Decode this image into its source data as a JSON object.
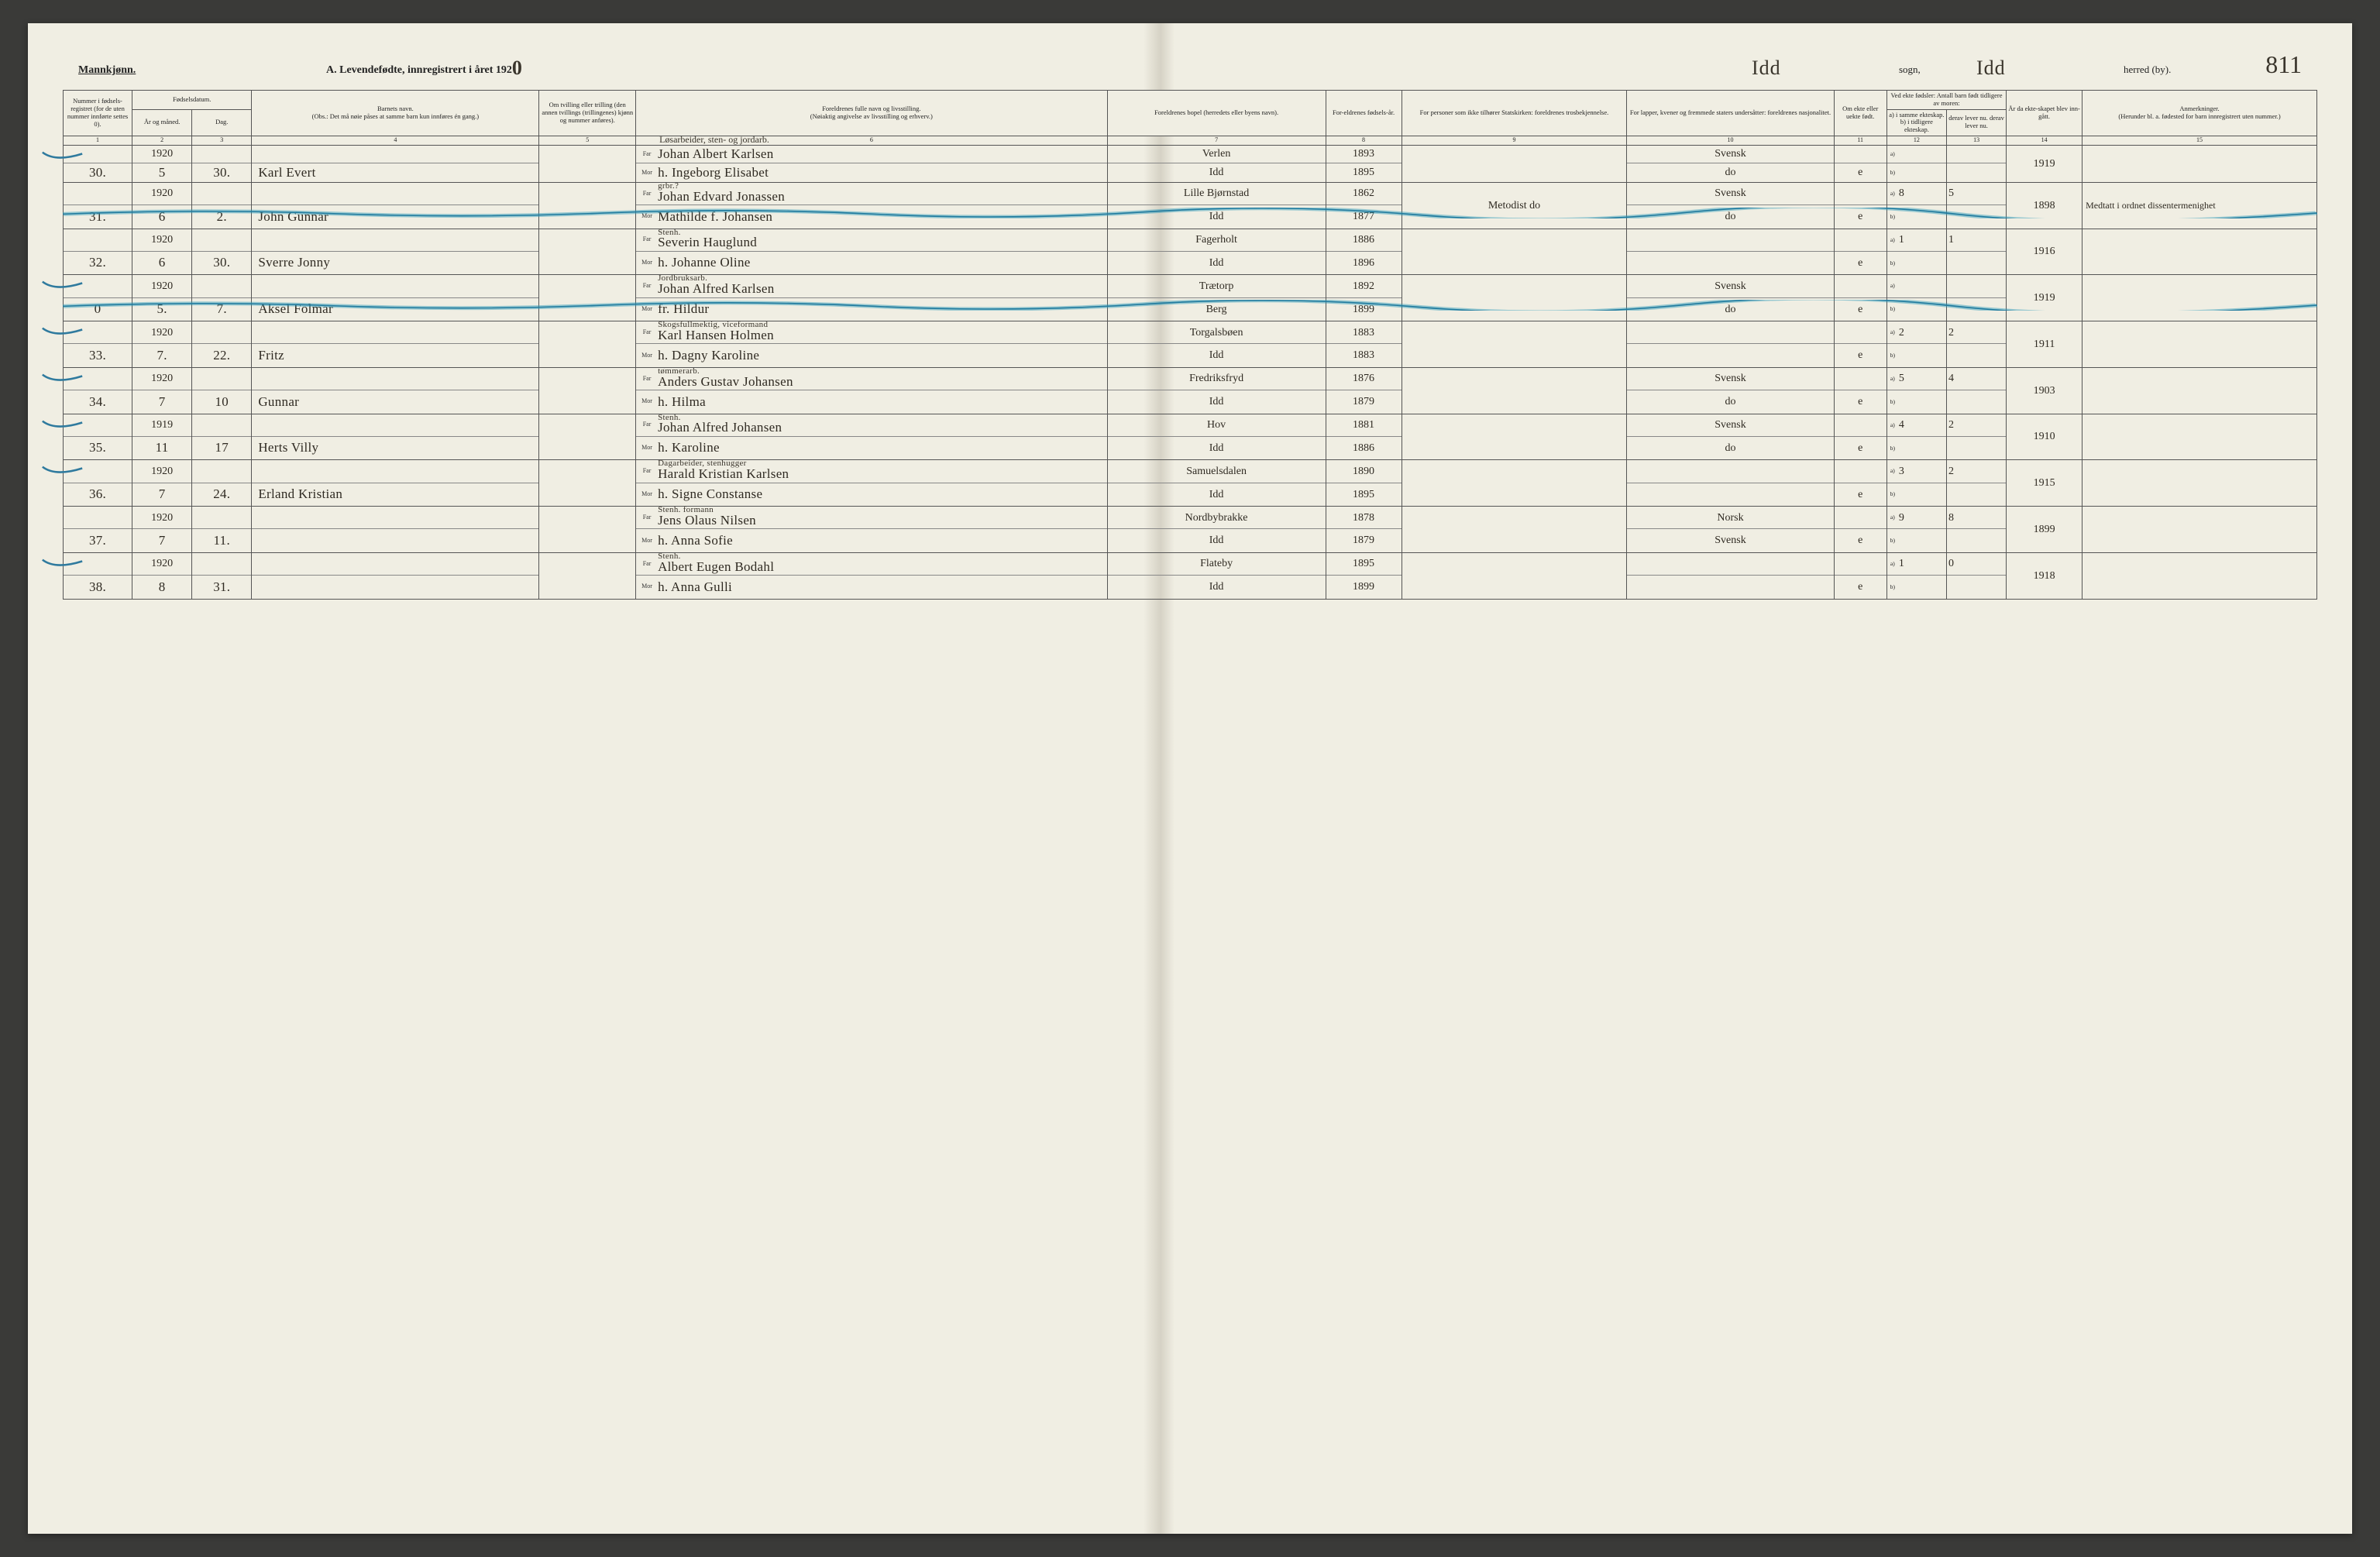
{
  "header": {
    "mannkjonn": "Mannkjønn.",
    "title_prefix": "A.  Levendefødte, innregistrert i året 192",
    "year_suffix": "0",
    "sogn_value": "Idd",
    "sogn_label": "sogn,",
    "herred_value": "Idd",
    "herred_label": "herred (by).",
    "page_number": "811"
  },
  "colors": {
    "paper": "#f0eee3",
    "ink": "#222222",
    "handwriting": "#2f2a22",
    "border": "#555555",
    "strike_blue": "#1f7a9e",
    "strike_highlight": "#2a9ab9",
    "tick_color": "#2f7a9e"
  },
  "columns": {
    "h1": "Nummer i fødsels-registret (for de uten nummer innførte settes 0).",
    "h2_group": "Fødselsdatum.",
    "h2a": "År og måned.",
    "h2b": "Dag.",
    "h4": "Barnets navn.",
    "h4_note": "(Obs.: Det må nøie påses at samme barn kun innføres én gang.)",
    "h5": "Om tvilling eller trilling (den annen tvillings (trillingenes) kjønn og nummer anføres).",
    "h6": "Foreldrenes fulle navn og livsstilling.",
    "h6_note": "(Nøiaktig angivelse av livsstilling og erhverv.)",
    "h7": "Foreldrenes bopel (herredets eller byens navn).",
    "h8": "For-eldrenes fødsels-år.",
    "h9": "For personer som ikke tilhører Statskirken: foreldrenes trosbekjennelse.",
    "h10": "For lapper, kvener og fremmede staters undersåtter: foreldrenes nasjonalitet.",
    "h11": "Om ekte eller uekte født.",
    "h12_group": "Ved ekte fødsler: Antall barn født tidligere av moren:",
    "h12a": "a) i samme ekteskap.  b) i tidligere ekteskap.",
    "h12b": "derav lever nu. derav lever nu.",
    "h14": "År da ekte-skapet blev inn-gått.",
    "h15": "Anmerkninger.",
    "h15_note": "(Herunder bl. a. fødested for barn innregistrert uten nummer.)",
    "tag_far": "Far",
    "tag_mor": "Mor",
    "tag_a": "a)",
    "tag_b": "b)"
  },
  "colnums": [
    "1",
    "2",
    "3",
    "4",
    "5",
    "6",
    "7",
    "8",
    "9",
    "10",
    "11",
    "12",
    "13",
    "14",
    "15"
  ],
  "rows": [
    {
      "num": "30.",
      "year": "1920",
      "mon": "5",
      "day": "30.",
      "name": "Karl Evert",
      "occupation": "Løsarbeider, sten- og jordarb.",
      "far": "Johan Albert Karlsen",
      "mor": "h. Ingeborg Elisabet",
      "bopel_f": "Verlen",
      "bopel_m": "Idd",
      "yr_f": "1893",
      "yr_m": "1895",
      "tro": "",
      "nat_f": "Svensk",
      "nat_m": "do",
      "ekte": "e",
      "a": "",
      "b": "",
      "lev_a": "",
      "lev_b": "",
      "married": "1919",
      "remark": "",
      "tick": true
    },
    {
      "num": "31.",
      "year": "1920",
      "mon": "6",
      "day": "2.",
      "name": "John Gunnar",
      "occupation": "grbr.?",
      "far": "Johan Edvard Jonassen",
      "mor": "Mathilde f. Johansen",
      "bopel_f": "Lille Bjørnstad",
      "bopel_m": "Idd",
      "yr_f": "1862",
      "yr_m": "1877",
      "tro": "Metodist   do",
      "nat_f": "Svensk",
      "nat_m": "do",
      "ekte": "e",
      "a": "8",
      "b": "",
      "lev_a": "5",
      "lev_b": "",
      "married": "1898",
      "remark": "Medtatt i ordnet dissentermenighet",
      "struck": true
    },
    {
      "num": "32.",
      "year": "1920",
      "mon": "6",
      "day": "30.",
      "name": "Sverre Jonny",
      "occupation": "Stenh.",
      "far": "Severin Hauglund",
      "mor": "h. Johanne Oline",
      "bopel_f": "Fagerholt",
      "bopel_m": "Idd",
      "yr_f": "1886",
      "yr_m": "1896",
      "tro": "",
      "nat_f": "",
      "nat_m": "",
      "ekte": "e",
      "a": "1",
      "b": "",
      "lev_a": "1",
      "lev_b": "",
      "married": "1916",
      "remark": ""
    },
    {
      "num": "0",
      "year": "1920",
      "mon": "5.",
      "day": "7.",
      "name": "Aksel Folmar",
      "occupation": "Jordbruksarb.",
      "far": "Johan Alfred Karlsen",
      "mor": "fr. Hildur",
      "bopel_f": "Trætorp",
      "bopel_m": "Berg",
      "yr_f": "1892",
      "yr_m": "1899",
      "tro": "",
      "nat_f": "Svensk",
      "nat_m": "do",
      "ekte": "e",
      "a": "",
      "b": "",
      "lev_a": "",
      "lev_b": "",
      "married": "1919",
      "remark": "",
      "struck": true,
      "tick": true
    },
    {
      "num": "33.",
      "year": "1920",
      "mon": "7.",
      "day": "22.",
      "name": "Fritz",
      "occupation": "Skogsfullmektig, viceformand",
      "far": "Karl Hansen Holmen",
      "mor": "h. Dagny Karoline",
      "bopel_f": "Torgalsbøen",
      "bopel_m": "Idd",
      "yr_f": "1883",
      "yr_m": "1883",
      "tro": "",
      "nat_f": "",
      "nat_m": "",
      "ekte": "e",
      "a": "2",
      "b": "",
      "lev_a": "2",
      "lev_b": "",
      "married": "1911",
      "remark": "",
      "tick": true
    },
    {
      "num": "34.",
      "year": "1920",
      "mon": "7",
      "day": "10",
      "name": "Gunnar",
      "occupation": "tømmerarb.",
      "far": "Anders Gustav Johansen",
      "mor": "h. Hilma",
      "bopel_f": "Fredriksfryd",
      "bopel_m": "Idd",
      "yr_f": "1876",
      "yr_m": "1879",
      "tro": "",
      "nat_f": "Svensk",
      "nat_m": "do",
      "ekte": "e",
      "a": "5",
      "b": "",
      "lev_a": "4",
      "lev_b": "",
      "married": "1903",
      "remark": "",
      "tick": true
    },
    {
      "num": "35.",
      "year": "1919",
      "mon": "11",
      "day": "17",
      "name": "Herts Villy",
      "occupation": "Stenh.",
      "far": "Johan Alfred Johansen",
      "mor": "h. Karoline",
      "bopel_f": "Hov",
      "bopel_m": "Idd",
      "yr_f": "1881",
      "yr_m": "1886",
      "tro": "",
      "nat_f": "Svensk",
      "nat_m": "do",
      "ekte": "e",
      "a": "4",
      "b": "",
      "lev_a": "2",
      "lev_b": "",
      "married": "1910",
      "remark": "",
      "tick": true
    },
    {
      "num": "36.",
      "year": "1920",
      "mon": "7",
      "day": "24.",
      "name": "Erland Kristian",
      "occupation": "Dagarbeider, stenhugger",
      "far": "Harald Kristian Karlsen",
      "mor": "h. Signe Constanse",
      "bopel_f": "Samuelsdalen",
      "bopel_m": "Idd",
      "yr_f": "1890",
      "yr_m": "1895",
      "tro": "",
      "nat_f": "",
      "nat_m": "",
      "ekte": "e",
      "a": "3",
      "b": "",
      "lev_a": "2",
      "lev_b": "",
      "married": "1915",
      "remark": "",
      "tick": true
    },
    {
      "num": "37.",
      "year": "1920",
      "mon": "7",
      "day": "11.",
      "name": "",
      "occupation": "Stenh. formann",
      "far": "Jens Olaus Nilsen",
      "mor": "h. Anna Sofie",
      "bopel_f": "Nordbybrakke",
      "bopel_m": "Idd",
      "yr_f": "1878",
      "yr_m": "1879",
      "tro": "",
      "nat_f": "Norsk",
      "nat_m": "Svensk",
      "ekte": "e",
      "a": "9",
      "b": "",
      "lev_a": "8",
      "lev_b": "",
      "married": "1899",
      "remark": ""
    },
    {
      "num": "38.",
      "year": "1920",
      "mon": "8",
      "day": "31.",
      "name": "",
      "occupation": "Stenh.",
      "far": "Albert Eugen Bodahl",
      "mor": "h. Anna Gulli",
      "bopel_f": "Flateby",
      "bopel_m": "Idd",
      "yr_f": "1895",
      "yr_m": "1899",
      "tro": "",
      "nat_f": "",
      "nat_m": "",
      "ekte": "e",
      "a": "1",
      "b": "",
      "lev_a": "0",
      "lev_b": "",
      "married": "1918",
      "remark": "",
      "tick": true
    }
  ]
}
